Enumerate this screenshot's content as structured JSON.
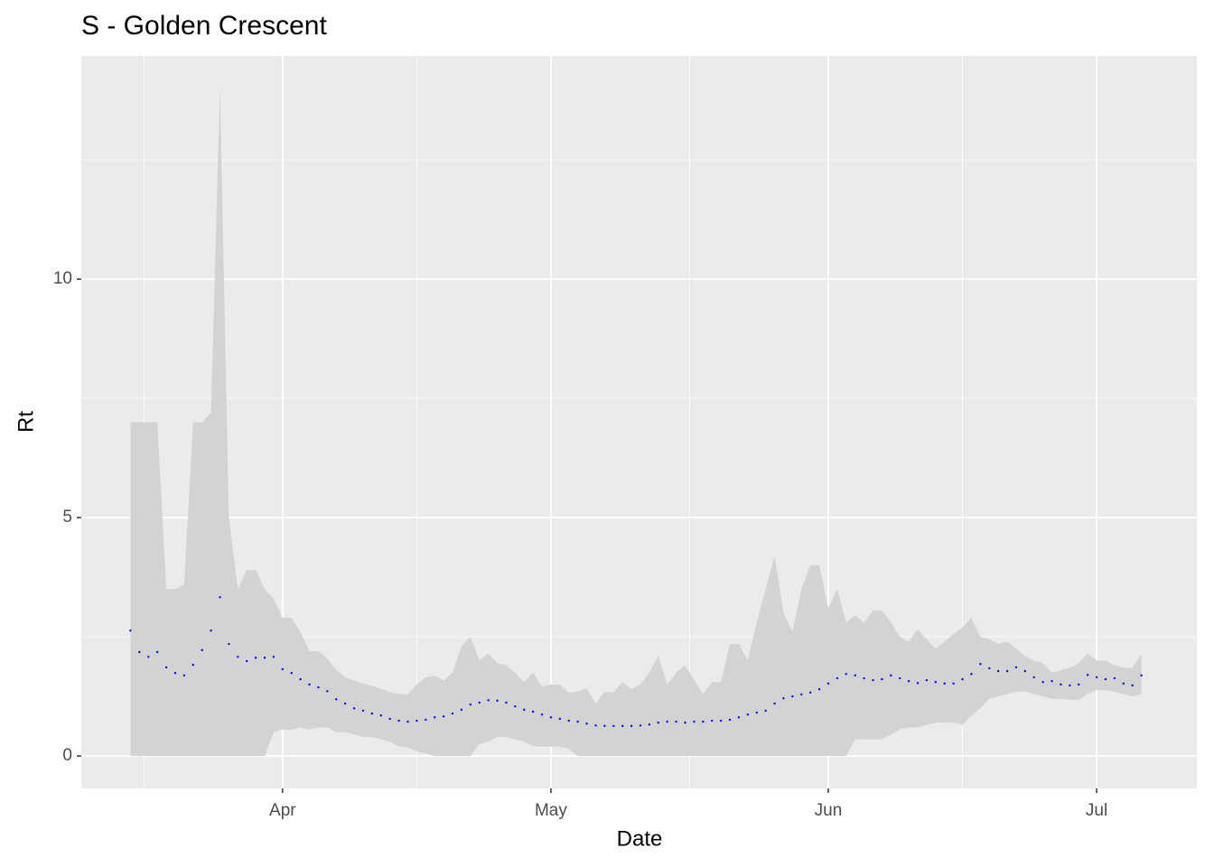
{
  "chart_data": {
    "type": "ribbon",
    "title": "S - Golden Crescent",
    "x_label": "Date",
    "y_label": "Rt",
    "x": [
      -17,
      -16,
      -15,
      -14,
      -13,
      -12,
      -11,
      -10,
      -9,
      -8,
      -7,
      -6,
      -5,
      -4,
      -3,
      -2,
      -1,
      0,
      1,
      2,
      3,
      4,
      5,
      6,
      7,
      8,
      9,
      10,
      11,
      12,
      13,
      14,
      15,
      16,
      17,
      18,
      19,
      20,
      21,
      22,
      23,
      24,
      25,
      26,
      27,
      28,
      29,
      30,
      31,
      32,
      33,
      34,
      35,
      36,
      37,
      38,
      39,
      40,
      41,
      42,
      43,
      44,
      45,
      46,
      47,
      48,
      49,
      50,
      51,
      52,
      53,
      54,
      55,
      56,
      57,
      58,
      59,
      60,
      61,
      62,
      63,
      64,
      65,
      66,
      67,
      68,
      69,
      70,
      71,
      72,
      73,
      74,
      75,
      76,
      77,
      78,
      79,
      80,
      81,
      82,
      83,
      84,
      85,
      86,
      87,
      88,
      89,
      90,
      91,
      92,
      93,
      94,
      95,
      96
    ],
    "values": [
      2.63,
      2.18,
      2.08,
      2.18,
      1.86,
      1.74,
      1.69,
      1.91,
      2.22,
      2.63,
      3.33,
      2.35,
      2.08,
      1.99,
      2.06,
      2.06,
      2.08,
      1.82,
      1.74,
      1.61,
      1.5,
      1.44,
      1.36,
      1.19,
      1.1,
      1.0,
      0.95,
      0.89,
      0.85,
      0.78,
      0.74,
      0.72,
      0.74,
      0.76,
      0.81,
      0.83,
      0.89,
      0.97,
      1.08,
      1.12,
      1.17,
      1.16,
      1.12,
      1.04,
      0.97,
      0.93,
      0.87,
      0.81,
      0.78,
      0.74,
      0.72,
      0.68,
      0.64,
      0.63,
      0.63,
      0.63,
      0.63,
      0.64,
      0.66,
      0.7,
      0.72,
      0.72,
      0.7,
      0.72,
      0.72,
      0.74,
      0.74,
      0.76,
      0.81,
      0.87,
      0.91,
      0.95,
      1.1,
      1.21,
      1.25,
      1.29,
      1.33,
      1.4,
      1.52,
      1.63,
      1.72,
      1.69,
      1.63,
      1.59,
      1.61,
      1.69,
      1.63,
      1.57,
      1.53,
      1.59,
      1.55,
      1.52,
      1.52,
      1.61,
      1.72,
      1.93,
      1.84,
      1.78,
      1.78,
      1.86,
      1.78,
      1.65,
      1.55,
      1.57,
      1.5,
      1.48,
      1.5,
      1.7,
      1.65,
      1.61,
      1.63,
      1.52,
      1.48,
      1.69
    ],
    "color": "#0000ff",
    "ribbon": {
      "color": "#d3d3d3",
      "upper": [
        7.0,
        7.0,
        7.0,
        7.0,
        3.5,
        3.5,
        3.6,
        7.0,
        7.0,
        7.2,
        14.0,
        5.0,
        3.5,
        3.9,
        3.9,
        3.5,
        3.3,
        2.9,
        2.9,
        2.6,
        2.2,
        2.2,
        2.05,
        1.8,
        1.65,
        1.58,
        1.52,
        1.47,
        1.41,
        1.34,
        1.3,
        1.3,
        1.5,
        1.65,
        1.68,
        1.58,
        1.75,
        2.3,
        2.5,
        2.0,
        2.15,
        1.95,
        1.9,
        1.75,
        1.55,
        1.75,
        1.45,
        1.5,
        1.5,
        1.33,
        1.35,
        1.42,
        1.1,
        1.35,
        1.33,
        1.55,
        1.4,
        1.5,
        1.75,
        2.1,
        1.5,
        1.75,
        1.9,
        1.6,
        1.3,
        1.55,
        1.55,
        2.35,
        2.35,
        2.0,
        2.8,
        3.5,
        4.2,
        3.0,
        2.6,
        3.5,
        4.0,
        4.0,
        3.1,
        3.5,
        2.8,
        2.95,
        2.8,
        3.05,
        3.05,
        2.8,
        2.5,
        2.4,
        2.65,
        2.45,
        2.25,
        2.4,
        2.55,
        2.7,
        2.9,
        2.5,
        2.45,
        2.35,
        2.4,
        2.25,
        2.1,
        2.0,
        1.95,
        1.75,
        1.8,
        1.85,
        1.95,
        2.15,
        2.0,
        2.0,
        1.9,
        1.85,
        1.85,
        2.15
      ],
      "lower": [
        0,
        0,
        0,
        0,
        0,
        0,
        0,
        0,
        0,
        0,
        0,
        0,
        0,
        0,
        0,
        0,
        0.5,
        0.55,
        0.55,
        0.6,
        0.55,
        0.6,
        0.6,
        0.5,
        0.5,
        0.45,
        0.4,
        0.4,
        0.35,
        0.3,
        0.2,
        0.18,
        0.1,
        0.05,
        0,
        0,
        0,
        0,
        0,
        0.25,
        0.3,
        0.4,
        0.4,
        0.35,
        0.3,
        0.2,
        0.2,
        0.2,
        0.2,
        0.15,
        0,
        0,
        0,
        0,
        0,
        0,
        0,
        0,
        0,
        0,
        0,
        0,
        0,
        0,
        0,
        0,
        0,
        0,
        0,
        0,
        0,
        0,
        0,
        0,
        0,
        0,
        0,
        0,
        0,
        0,
        0,
        0.35,
        0.35,
        0.35,
        0.35,
        0.45,
        0.55,
        0.6,
        0.6,
        0.65,
        0.7,
        0.7,
        0.7,
        0.65,
        0.85,
        1.0,
        1.2,
        1.25,
        1.3,
        1.35,
        1.35,
        1.3,
        1.25,
        1.2,
        1.2,
        1.18,
        1.18,
        1.3,
        1.38,
        1.38,
        1.35,
        1.3,
        1.25,
        1.3
      ]
    },
    "xlim": [
      -22.5,
      102.2
    ],
    "ylim": [
      -0.68,
      14.68
    ],
    "xticks": [
      {
        "value": 0,
        "label": "Apr"
      },
      {
        "value": 30,
        "label": "May"
      },
      {
        "value": 61,
        "label": "Jun"
      },
      {
        "value": 91,
        "label": "Jul"
      }
    ],
    "yticks": [
      0,
      5,
      10
    ],
    "minor_xticks": [
      -15.5,
      15,
      45.5,
      76
    ],
    "minor_yticks": [
      2.5,
      7.5,
      12.5
    ],
    "grid": true
  }
}
